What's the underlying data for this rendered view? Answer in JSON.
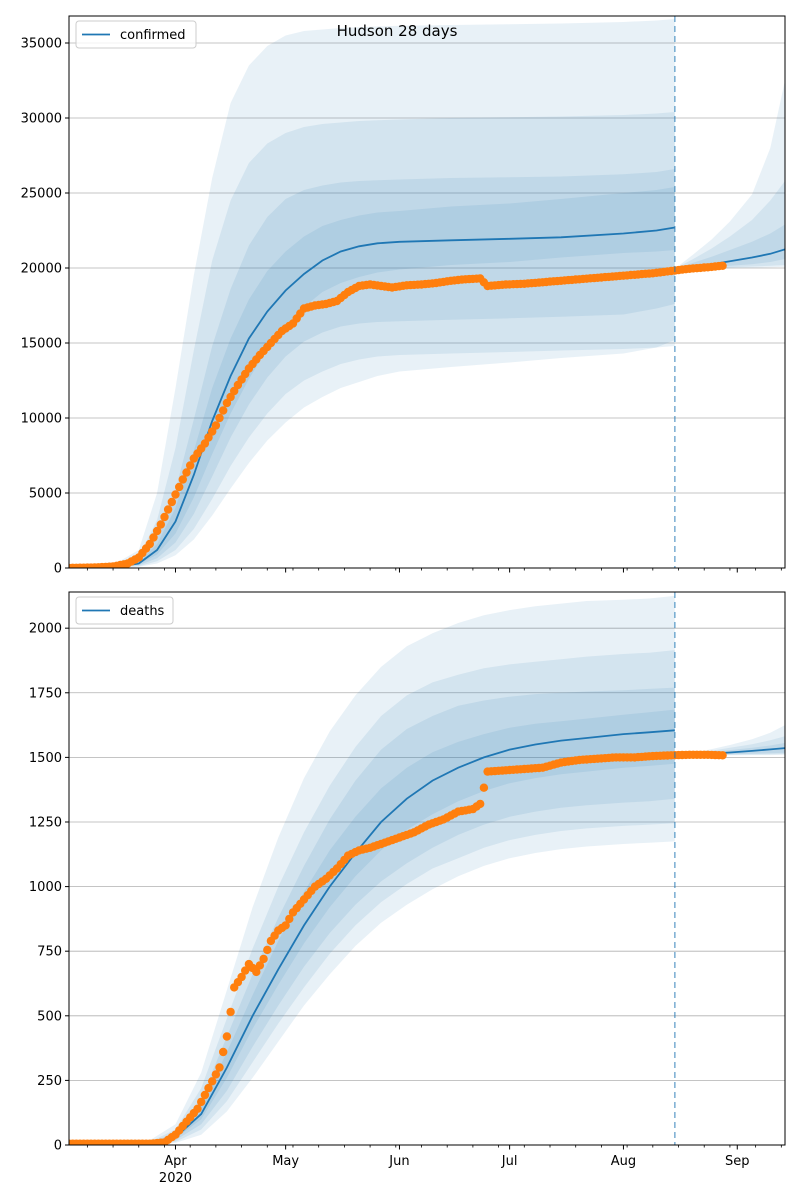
{
  "title": "Hudson 28 days",
  "colors": {
    "line": "#1f77b4",
    "band": "#1f77b4",
    "points": "#ff7f0e",
    "grid": "#b0b0b0"
  },
  "chart_data": [
    {
      "type": "line",
      "legend": "confirmed",
      "legend_position": "top-left",
      "grid": "horizontal",
      "x_range": [
        "2020-03-03",
        "2020-09-14"
      ],
      "ylim": [
        0,
        36800
      ],
      "y_ticks": [
        0,
        5000,
        10000,
        15000,
        20000,
        25000,
        30000,
        35000
      ],
      "x_tick_labels": [
        {
          "date": "2020-04-01",
          "label": "Apr",
          "sublabel": "2020"
        },
        {
          "date": "2020-05-01",
          "label": "May"
        },
        {
          "date": "2020-06-01",
          "label": "Jun"
        },
        {
          "date": "2020-07-01",
          "label": "Jul"
        },
        {
          "date": "2020-08-01",
          "label": "Aug"
        },
        {
          "date": "2020-09-01",
          "label": "Sep"
        }
      ],
      "forecast_start": "2020-08-15",
      "model_fit": {
        "dates": [
          "2020-03-03",
          "2020-03-15",
          "2020-03-22",
          "2020-03-27",
          "2020-04-01",
          "2020-04-06",
          "2020-04-11",
          "2020-04-16",
          "2020-04-21",
          "2020-04-26",
          "2020-05-01",
          "2020-05-06",
          "2020-05-11",
          "2020-05-16",
          "2020-05-21",
          "2020-05-26",
          "2020-06-01",
          "2020-06-15",
          "2020-07-01",
          "2020-07-15",
          "2020-08-01",
          "2020-08-10",
          "2020-08-15"
        ],
        "median": [
          0,
          50,
          300,
          1200,
          3100,
          6200,
          9800,
          12800,
          15300,
          17100,
          18500,
          19600,
          20500,
          21100,
          21450,
          21650,
          21750,
          21850,
          21950,
          22050,
          22300,
          22500,
          22700
        ],
        "band_inner": [
          [
            0,
            50,
            250,
            900,
            2300,
            4700,
            7600,
            10300,
            12600,
            14600,
            16200,
            17400,
            18400,
            19000,
            19400,
            19700,
            19900,
            20200,
            20400,
            20700,
            21000,
            21100,
            21200
          ],
          [
            0,
            60,
            380,
            1600,
            4000,
            7800,
            12000,
            15300,
            17900,
            19800,
            21100,
            22100,
            22800,
            23200,
            23500,
            23700,
            23800,
            24100,
            24300,
            24600,
            25000,
            25200,
            25400
          ]
        ],
        "band_mid": [
          [
            0,
            40,
            180,
            650,
            1700,
            3600,
            6100,
            8700,
            10900,
            12700,
            14100,
            15100,
            15700,
            16100,
            16300,
            16400,
            16450,
            16550,
            16650,
            16750,
            16900,
            17300,
            17600
          ],
          [
            0,
            80,
            500,
            2100,
            5200,
            9900,
            14800,
            18600,
            21500,
            23400,
            24600,
            25200,
            25500,
            25700,
            25800,
            25850,
            25900,
            26000,
            26050,
            26100,
            26250,
            26400,
            26600
          ]
        ],
        "band_outer1": [
          [
            0,
            30,
            120,
            450,
            1200,
            2600,
            4600,
            6800,
            8700,
            10300,
            11600,
            12500,
            13100,
            13600,
            13900,
            14100,
            14200,
            14300,
            14400,
            14500,
            14600,
            14700,
            14800
          ],
          [
            0,
            120,
            750,
            3200,
            8000,
            14500,
            20500,
            24500,
            27000,
            28300,
            29000,
            29400,
            29600,
            29700,
            29800,
            29850,
            29900,
            30000,
            30050,
            30100,
            30200,
            30300,
            30400
          ]
        ],
        "band_outer2": [
          [
            0,
            20,
            80,
            300,
            850,
            1900,
            3500,
            5300,
            7000,
            8500,
            9700,
            10700,
            11400,
            12000,
            12400,
            12800,
            13100,
            13400,
            13700,
            14000,
            14300,
            14700,
            15200
          ],
          [
            0,
            200,
            1200,
            5000,
            12000,
            19500,
            26000,
            31000,
            33500,
            34800,
            35500,
            35800,
            35900,
            36000,
            36050,
            36100,
            36150,
            36200,
            36250,
            36300,
            36400,
            36500,
            36600
          ]
        ]
      },
      "forecast": {
        "dates": [
          "2020-08-15",
          "2020-08-20",
          "2020-08-25",
          "2020-08-30",
          "2020-09-05",
          "2020-09-10",
          "2020-09-14"
        ],
        "median": [
          19950,
          20100,
          20250,
          20450,
          20700,
          20950,
          21250
        ],
        "band_inner": [
          [
            19950,
            19980,
            20050,
            20150,
            20250,
            20400,
            20600
          ],
          [
            19950,
            20350,
            20750,
            21200,
            21750,
            22300,
            22900
          ]
        ],
        "band_mid": [
          [
            19950,
            19960,
            20000,
            20050,
            20100,
            20150,
            20200
          ],
          [
            19950,
            20600,
            21300,
            22100,
            23200,
            24500,
            25800
          ]
        ],
        "band_outer": [
          [
            19950,
            19950,
            19970,
            20000,
            20020,
            20050,
            20080
          ],
          [
            19950,
            20900,
            21900,
            23100,
            24900,
            28000,
            32500
          ]
        ]
      },
      "observed": {
        "dates": [
          "2020-03-03",
          "2020-03-10",
          "2020-03-15",
          "2020-03-19",
          "2020-03-22",
          "2020-03-25",
          "2020-03-28",
          "2020-03-31",
          "2020-04-03",
          "2020-04-06",
          "2020-04-09",
          "2020-04-12",
          "2020-04-15",
          "2020-04-18",
          "2020-04-21",
          "2020-04-24",
          "2020-04-27",
          "2020-04-30",
          "2020-05-03",
          "2020-05-06",
          "2020-05-09",
          "2020-05-12",
          "2020-05-15",
          "2020-05-18",
          "2020-05-21",
          "2020-05-24",
          "2020-05-27",
          "2020-05-30",
          "2020-06-03",
          "2020-06-07",
          "2020-06-11",
          "2020-06-15",
          "2020-06-19",
          "2020-06-23",
          "2020-06-25",
          "2020-06-30",
          "2020-07-05",
          "2020-07-10",
          "2020-07-15",
          "2020-07-20",
          "2020-07-25",
          "2020-07-30",
          "2020-08-04",
          "2020-08-09",
          "2020-08-14",
          "2020-08-19",
          "2020-08-24",
          "2020-08-28"
        ],
        "values": [
          10,
          30,
          100,
          300,
          700,
          1600,
          2900,
          4400,
          5900,
          7300,
          8300,
          9500,
          11000,
          12200,
          13300,
          14200,
          15000,
          15800,
          16300,
          17300,
          17500,
          17600,
          17800,
          18400,
          18800,
          18900,
          18800,
          18700,
          18850,
          18900,
          19000,
          19150,
          19250,
          19300,
          18800,
          18900,
          18950,
          19050,
          19150,
          19250,
          19350,
          19450,
          19550,
          19650,
          19800,
          19950,
          20050,
          20150
        ]
      }
    },
    {
      "type": "line",
      "legend": "deaths",
      "legend_position": "top-left",
      "grid": "horizontal",
      "x_range": [
        "2020-03-03",
        "2020-09-14"
      ],
      "ylim": [
        0,
        2140
      ],
      "y_ticks": [
        0,
        250,
        500,
        750,
        1000,
        1250,
        1500,
        1750,
        2000
      ],
      "x_tick_labels": [
        {
          "date": "2020-04-01",
          "label": "Apr",
          "sublabel": "2020"
        },
        {
          "date": "2020-05-01",
          "label": "May"
        },
        {
          "date": "2020-06-01",
          "label": "Jun"
        },
        {
          "date": "2020-07-01",
          "label": "Jul"
        },
        {
          "date": "2020-08-01",
          "label": "Aug"
        },
        {
          "date": "2020-09-01",
          "label": "Sep"
        }
      ],
      "forecast_start": "2020-08-15",
      "model_fit": {
        "dates": [
          "2020-03-03",
          "2020-03-25",
          "2020-04-01",
          "2020-04-08",
          "2020-04-15",
          "2020-04-22",
          "2020-04-29",
          "2020-05-06",
          "2020-05-13",
          "2020-05-20",
          "2020-05-27",
          "2020-06-03",
          "2020-06-10",
          "2020-06-17",
          "2020-06-24",
          "2020-07-01",
          "2020-07-08",
          "2020-07-15",
          "2020-07-22",
          "2020-08-01",
          "2020-08-08",
          "2020-08-15"
        ],
        "median": [
          0,
          5,
          30,
          120,
          300,
          500,
          680,
          850,
          1000,
          1130,
          1250,
          1340,
          1410,
          1460,
          1500,
          1530,
          1550,
          1565,
          1575,
          1590,
          1597,
          1605
        ],
        "band_inner": [
          [
            0,
            4,
            25,
            100,
            260,
            450,
            620,
            780,
            920,
            1040,
            1140,
            1220,
            1280,
            1330,
            1370,
            1400,
            1420,
            1435,
            1445,
            1460,
            1467,
            1475
          ],
          [
            0,
            7,
            38,
            150,
            360,
            580,
            790,
            980,
            1140,
            1270,
            1380,
            1460,
            1520,
            1560,
            1590,
            1615,
            1630,
            1640,
            1650,
            1665,
            1675,
            1685
          ]
        ],
        "band_mid": [
          [
            0,
            3,
            18,
            80,
            210,
            380,
            540,
            690,
            820,
            930,
            1020,
            1090,
            1150,
            1200,
            1240,
            1270,
            1290,
            1305,
            1315,
            1325,
            1330,
            1340
          ],
          [
            0,
            9,
            48,
            180,
            420,
            660,
            880,
            1080,
            1260,
            1410,
            1530,
            1610,
            1660,
            1700,
            1720,
            1735,
            1745,
            1750,
            1755,
            1760,
            1765,
            1770
          ]
        ],
        "band_outer1": [
          [
            0,
            2,
            12,
            60,
            170,
            320,
            470,
            610,
            740,
            850,
            940,
            1010,
            1070,
            1110,
            1150,
            1180,
            1200,
            1215,
            1225,
            1235,
            1240,
            1245
          ],
          [
            0,
            12,
            60,
            220,
            490,
            760,
            1000,
            1210,
            1390,
            1540,
            1660,
            1740,
            1790,
            1820,
            1845,
            1860,
            1870,
            1880,
            1890,
            1900,
            1905,
            1915
          ]
        ],
        "band_outer2": [
          [
            0,
            1,
            8,
            40,
            130,
            260,
            400,
            540,
            660,
            770,
            860,
            930,
            990,
            1040,
            1080,
            1110,
            1130,
            1145,
            1155,
            1165,
            1170,
            1175
          ],
          [
            0,
            18,
            80,
            280,
            600,
            920,
            1190,
            1420,
            1600,
            1740,
            1850,
            1930,
            1980,
            2020,
            2050,
            2070,
            2085,
            2095,
            2105,
            2110,
            2115,
            2125
          ]
        ]
      },
      "forecast": {
        "dates": [
          "2020-08-15",
          "2020-08-20",
          "2020-08-25",
          "2020-08-30",
          "2020-09-05",
          "2020-09-10",
          "2020-09-14"
        ],
        "median": [
          1508,
          1512,
          1515,
          1519,
          1525,
          1531,
          1536
        ],
        "band_inner": [
          [
            1508,
            1509,
            1510,
            1512,
            1514,
            1516,
            1518
          ],
          [
            1508,
            1514,
            1520,
            1528,
            1537,
            1546,
            1556
          ]
        ],
        "band_mid": [
          [
            1508,
            1508,
            1509,
            1510,
            1511,
            1512,
            1513
          ],
          [
            1508,
            1516,
            1526,
            1537,
            1551,
            1566,
            1582
          ]
        ],
        "band_outer": [
          [
            1508,
            1508,
            1508,
            1508,
            1509,
            1509,
            1510
          ],
          [
            1508,
            1518,
            1532,
            1548,
            1570,
            1595,
            1625
          ]
        ]
      },
      "observed": {
        "dates": [
          "2020-03-03",
          "2020-03-15",
          "2020-03-25",
          "2020-03-29",
          "2020-04-01",
          "2020-04-04",
          "2020-04-07",
          "2020-04-10",
          "2020-04-13",
          "2020-04-15",
          "2020-04-17",
          "2020-04-19",
          "2020-04-21",
          "2020-04-23",
          "2020-04-25",
          "2020-04-27",
          "2020-04-29",
          "2020-05-01",
          "2020-05-03",
          "2020-05-06",
          "2020-05-09",
          "2020-05-12",
          "2020-05-15",
          "2020-05-18",
          "2020-05-21",
          "2020-05-24",
          "2020-05-28",
          "2020-06-01",
          "2020-06-05",
          "2020-06-09",
          "2020-06-13",
          "2020-06-17",
          "2020-06-21",
          "2020-06-23",
          "2020-06-25",
          "2020-06-30",
          "2020-07-05",
          "2020-07-10",
          "2020-07-15",
          "2020-07-20",
          "2020-07-25",
          "2020-07-30",
          "2020-08-04",
          "2020-08-09",
          "2020-08-14",
          "2020-08-19",
          "2020-08-24",
          "2020-08-28"
        ],
        "values": [
          5,
          5,
          5,
          10,
          40,
          90,
          140,
          220,
          300,
          420,
          610,
          650,
          700,
          670,
          720,
          790,
          830,
          850,
          900,
          950,
          1000,
          1030,
          1070,
          1120,
          1140,
          1150,
          1170,
          1190,
          1210,
          1240,
          1260,
          1290,
          1300,
          1320,
          1445,
          1450,
          1455,
          1460,
          1480,
          1490,
          1495,
          1500,
          1500,
          1505,
          1508,
          1510,
          1510,
          1508
        ]
      }
    }
  ]
}
